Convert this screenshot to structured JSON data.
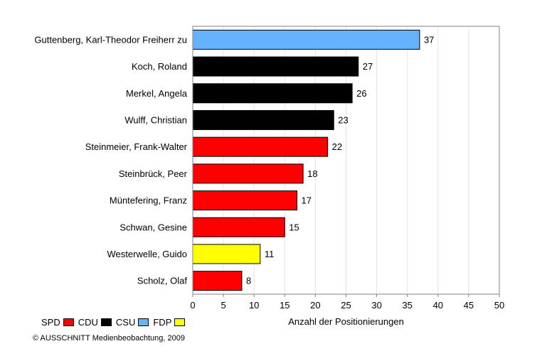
{
  "chart_data": {
    "type": "bar",
    "orientation": "horizontal",
    "categories": [
      "Guttenberg, Karl-Theodor Freiherr zu",
      "Koch, Roland",
      "Merkel, Angela",
      "Wulff, Christian",
      "Steinmeier, Frank-Walter",
      "Steinbrück, Peer",
      "Müntefering, Franz",
      "Schwan, Gesine",
      "Westerwelle, Guido",
      "Scholz, Olaf"
    ],
    "values": [
      37,
      27,
      26,
      23,
      22,
      18,
      17,
      15,
      11,
      8
    ],
    "party": [
      "CSU",
      "CDU",
      "CDU",
      "CDU",
      "SPD",
      "SPD",
      "SPD",
      "SPD",
      "FDP",
      "SPD"
    ],
    "xlabel": "Anzahl der Positionierungen",
    "xlim": [
      0,
      50
    ],
    "xticks": [
      0,
      5,
      10,
      15,
      20,
      25,
      30,
      35,
      40,
      45,
      50
    ],
    "grid": "vertical",
    "data_labels": true
  },
  "legend": [
    {
      "label": "SPD",
      "color": "#ff0000"
    },
    {
      "label": "CDU",
      "color": "#000000"
    },
    {
      "label": "CSU",
      "color": "#66b2ff"
    },
    {
      "label": "FDP",
      "color": "#ffff00"
    }
  ],
  "copyright": "© AUSSCHNITT Medienbeobachtung, 2009"
}
